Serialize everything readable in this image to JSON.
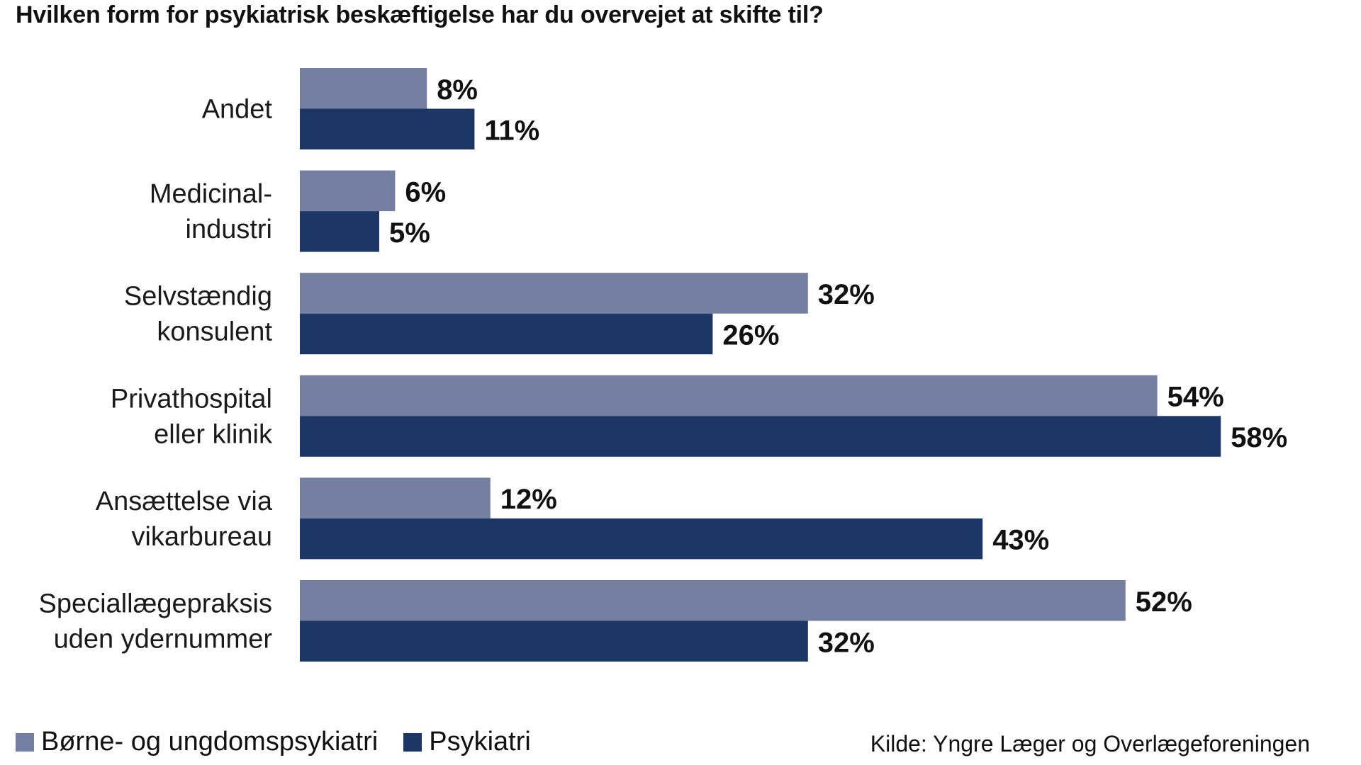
{
  "title": "Hvilken form for psykiatrisk beskæftigelse har du overvejet at skifte til?",
  "source": "Kilde: Yngre Læger og Overlægeforeningen",
  "colors": {
    "series1": "#757fa2",
    "series2": "#1c3666"
  },
  "legend": [
    {
      "label": "Børne- og ungdomspsykiatri",
      "color": "#757fa2"
    },
    {
      "label": "Psykiatri",
      "color": "#1c3666"
    }
  ],
  "chart_data": {
    "type": "bar",
    "orientation": "horizontal",
    "title": "Hvilken form for psykiatrisk beskæftigelse har du overvejet at skifte til?",
    "categories": [
      [
        "Andet"
      ],
      [
        "Medicinal-",
        "industri"
      ],
      [
        "Selvstændig",
        "konsulent"
      ],
      [
        "Privathospital",
        "eller klinik"
      ],
      [
        "Ansættelse via",
        "vikarbureau"
      ],
      [
        "Speciallægepraksis",
        "uden ydernummer"
      ]
    ],
    "series": [
      {
        "name": "Børne- og ungdomspsykiatri",
        "values": [
          8,
          6,
          32,
          54,
          12,
          52
        ],
        "labels": [
          "8%",
          "6%",
          "32%",
          "54%",
          "12%",
          "52%"
        ]
      },
      {
        "name": "Psykiatri",
        "values": [
          11,
          5,
          26,
          58,
          43,
          32
        ],
        "labels": [
          "11%",
          "5%",
          "26%",
          "58%",
          "43%",
          "32%"
        ]
      }
    ],
    "xlim": [
      0,
      58
    ],
    "grid": false,
    "legend_position": "bottom-left"
  }
}
